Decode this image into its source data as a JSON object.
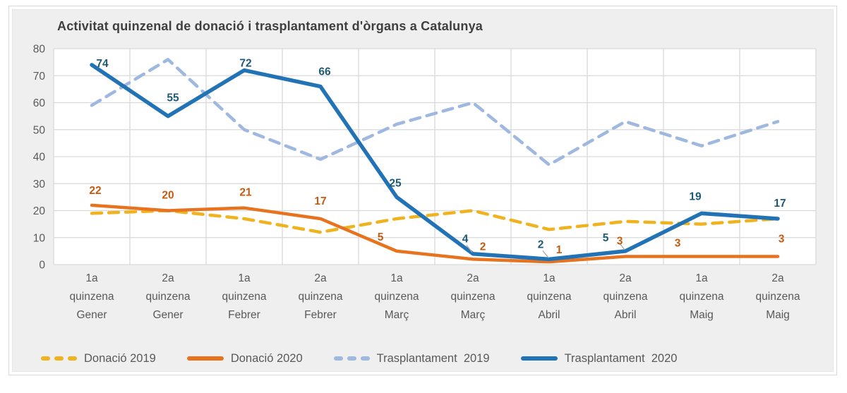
{
  "title": "Activitat quinzenal de donació i trasplantament d'òrgans a Catalunya",
  "colors": {
    "page_bg": "#FFFFFF",
    "panel_bg": "#EFEFEF",
    "panel_border": "#D9D9D9",
    "plot_bg": "#FFFFFF",
    "gridline": "#D9D9D9",
    "title_text": "#3F3F3F",
    "axis_text": "#595959",
    "leader_line": "#A6A6A6"
  },
  "chart_data": {
    "type": "line",
    "title": "Activitat quinzenal de donació i trasplantament d'òrgans a Catalunya",
    "categories": [
      "1a quinzena Gener",
      "2a quinzena Gener",
      "1a quinzena Febrer",
      "2a quinzena Febrer",
      "1a quinzena Març",
      "2a quinzena Març",
      "1a quinzena Abril",
      "2a quinzena Abril",
      "1a quinzena Maig",
      "2a quinzena Maig"
    ],
    "y_axis": {
      "min": 0,
      "max": 80,
      "step": 10,
      "ticks": [
        0,
        10,
        20,
        30,
        40,
        50,
        60,
        70,
        80
      ]
    },
    "grid": true,
    "legend_position": "bottom",
    "series": [
      {
        "name": "Donació 2019",
        "color": "#EFB320",
        "line_style": "dashed",
        "show_labels": false,
        "values": [
          19,
          20,
          17,
          12,
          17,
          20,
          13,
          16,
          15,
          17
        ]
      },
      {
        "name": "Donació 2020",
        "color": "#E8731F",
        "line_style": "solid",
        "show_labels": true,
        "label_color": "#C55A11",
        "values": [
          22,
          20,
          21,
          17,
          5,
          2,
          1,
          3,
          3,
          3
        ]
      },
      {
        "name": "Trasplantament  2019",
        "color": "#9FB8E0",
        "line_style": "dashed",
        "show_labels": false,
        "values": [
          59,
          76,
          50,
          39,
          52,
          60,
          37,
          53,
          44,
          53
        ]
      },
      {
        "name": "Trasplantament  2020",
        "color": "#2173B6",
        "line_style": "solid",
        "show_labels": true,
        "label_color": "#1F5A75",
        "values": [
          74,
          55,
          72,
          66,
          25,
          4,
          2,
          5,
          19,
          17
        ]
      }
    ]
  }
}
